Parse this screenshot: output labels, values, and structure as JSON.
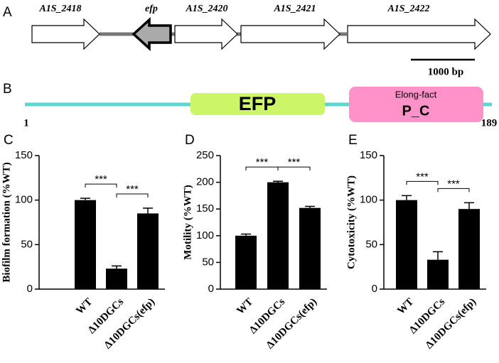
{
  "panel_labels": [
    "A",
    "B"
  ],
  "gene_map": {
    "genes": [
      "A1S_2418",
      "efp",
      "A1S_2420",
      "A1S_2421",
      "A1S_2422"
    ],
    "scale_bar": "1000 bp"
  },
  "domain_map": {
    "start": "1",
    "end": "189",
    "domains": [
      {
        "label": "EFP"
      },
      {
        "label": "Elong-fact",
        "sublabel": "P_C"
      }
    ]
  },
  "chart_data": [
    {
      "type": "bar",
      "panel": "C",
      "ylabel": "Biofilm formation (%WT)",
      "categories": [
        "WT",
        "Δ10DGCs",
        "Δ10DGCs(efp)"
      ],
      "values": [
        100,
        23,
        85
      ],
      "errors": [
        2,
        3,
        6
      ],
      "color": "#000000",
      "ylim": [
        0,
        150
      ],
      "yticks": [
        0,
        50,
        100,
        150
      ],
      "annotations": [
        "***",
        "***"
      ]
    },
    {
      "type": "bar",
      "panel": "D",
      "ylabel": "Motility (%WT)",
      "categories": [
        "WT",
        "Δ10DGCs",
        "Δ10DGCs(efp)"
      ],
      "values": [
        100,
        200,
        152
      ],
      "errors": [
        3,
        2,
        3
      ],
      "color": "#000000",
      "ylim": [
        0,
        250
      ],
      "yticks": [
        0,
        50,
        100,
        150,
        200,
        250
      ],
      "annotations": [
        "***",
        "***"
      ]
    },
    {
      "type": "bar",
      "panel": "E",
      "ylabel": "Cytotoxicity (%WT)",
      "categories": [
        "WT",
        "Δ10DGCs",
        "Δ10DGCs(efp)"
      ],
      "values": [
        100,
        33,
        90
      ],
      "errors": [
        5,
        9,
        7
      ],
      "color": "#000000",
      "ylim": [
        0,
        150
      ],
      "yticks": [
        0,
        50,
        100,
        150
      ],
      "annotations": [
        "***",
        "***"
      ]
    }
  ]
}
